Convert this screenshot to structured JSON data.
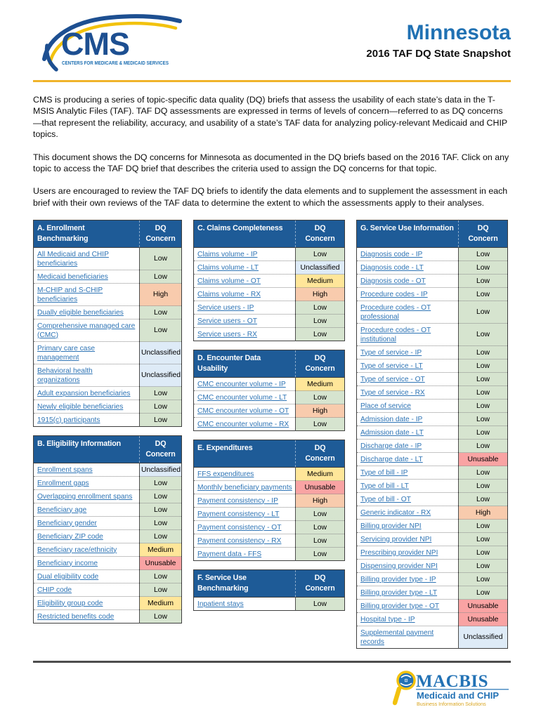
{
  "header": {
    "logo_acronym": "CMS",
    "logo_tagline": "CENTERS FOR MEDICARE & MEDICAID SERVICES",
    "title": "Minnesota",
    "subtitle": "2016 TAF DQ State Snapshot"
  },
  "intro": {
    "p1": "CMS is producing a series of topic-specific data quality (DQ) briefs that assess the usability of each state’s data in the T-MSIS Analytic Files (TAF). TAF DQ assessments are expressed in terms of levels of concern—referred to as DQ concerns—that represent the reliability, accuracy, and usability of a state’s TAF data for analyzing policy-relevant Medicaid and CHIP topics.",
    "p2": "This document shows the DQ concerns for Minnesota as documented in the DQ briefs based on the 2016 TAF. Click on any topic to access the TAF DQ brief that describes the criteria used to assign the DQ concerns for that topic.",
    "p3": "Users are encouraged to review the TAF DQ briefs to identify the data elements and to supplement the assessment in each brief with their own reviews of the TAF data to determine the extent to which the assessments apply to their analyses."
  },
  "labels": {
    "concern_header": "DQ\nConcern"
  },
  "legend": {
    "Low": "#D6E4CF",
    "Medium": "#FFE699",
    "High": "#F8CBAD",
    "Unusable": "#F9A3A3",
    "Unclassified": "#DEEBF7",
    "header_blue": "#1E5B97",
    "link_blue": "#2E74B5",
    "accent_gold": "#F0B32A"
  },
  "tables": {
    "A": {
      "title": "A. Enrollment Benchmarking",
      "rows": [
        {
          "topic": "All Medicaid and CHIP beneficiaries",
          "concern": "Low"
        },
        {
          "topic": "Medicaid beneficiaries",
          "concern": "Low"
        },
        {
          "topic": "M-CHIP and S-CHIP beneficiaries",
          "concern": "High"
        },
        {
          "topic": "Dually eligible beneficiaries",
          "concern": "Low"
        },
        {
          "topic": "Comprehensive managed care (CMC)",
          "concern": "Low"
        },
        {
          "topic": "Primary care case management",
          "concern": "Unclassified"
        },
        {
          "topic": "Behavioral health organizations",
          "concern": "Unclassified"
        },
        {
          "topic": "Adult expansion beneficiaries",
          "concern": "Low"
        },
        {
          "topic": "Newly eligible beneficiaries",
          "concern": "Low"
        },
        {
          "topic": "1915(c) participants",
          "concern": "Low"
        }
      ]
    },
    "B": {
      "title": "B. Eligibility Information",
      "rows": [
        {
          "topic": "Enrollment spans",
          "concern": "Unclassified"
        },
        {
          "topic": "Enrollment gaps",
          "concern": "Low"
        },
        {
          "topic": "Overlapping enrollment spans",
          "concern": "Low"
        },
        {
          "topic": "Beneficiary age",
          "concern": "Low"
        },
        {
          "topic": "Beneficiary gender",
          "concern": "Low"
        },
        {
          "topic": "Beneficiary ZIP code",
          "concern": "Low"
        },
        {
          "topic": "Beneficiary race/ethnicity",
          "concern": "Medium"
        },
        {
          "topic": "Beneficiary income",
          "concern": "Unusable"
        },
        {
          "topic": "Dual eligibility code",
          "concern": "Low"
        },
        {
          "topic": "CHIP code",
          "concern": "Low"
        },
        {
          "topic": "Eligibility group code",
          "concern": "Medium"
        },
        {
          "topic": "Restricted benefits code",
          "concern": "Low"
        }
      ]
    },
    "C": {
      "title": "C. Claims Completeness",
      "rows": [
        {
          "topic": "Claims volume - IP",
          "concern": "Low"
        },
        {
          "topic": "Claims volume - LT",
          "concern": "Unclassified"
        },
        {
          "topic": "Claims volume - OT",
          "concern": "Medium"
        },
        {
          "topic": "Claims volume - RX",
          "concern": "High"
        },
        {
          "topic": "Service users - IP",
          "concern": "Low"
        },
        {
          "topic": "Service users - OT",
          "concern": "Low"
        },
        {
          "topic": "Service users - RX",
          "concern": "Low"
        }
      ]
    },
    "D": {
      "title": "D. Encounter Data Usability",
      "rows": [
        {
          "topic": "CMC encounter volume - IP",
          "concern": "Medium"
        },
        {
          "topic": "CMC encounter volume - LT",
          "concern": "Low"
        },
        {
          "topic": "CMC encounter volume - OT",
          "concern": "High"
        },
        {
          "topic": "CMC encounter volume - RX",
          "concern": "Low"
        }
      ]
    },
    "E": {
      "title": "E. Expenditures",
      "rows": [
        {
          "topic": "FFS expenditures",
          "concern": "Medium"
        },
        {
          "topic": "Monthly beneficiary payments",
          "concern": "Unusable"
        },
        {
          "topic": "Payment consistency - IP",
          "concern": "High"
        },
        {
          "topic": "Payment consistency - LT",
          "concern": "Low"
        },
        {
          "topic": "Payment consistency - OT",
          "concern": "Low"
        },
        {
          "topic": "Payment consistency - RX",
          "concern": "Low"
        },
        {
          "topic": "Payment data - FFS",
          "concern": "Low"
        }
      ]
    },
    "F": {
      "title": "F. Service Use Benchmarking",
      "rows": [
        {
          "topic": "Inpatient stays",
          "concern": "Low"
        }
      ]
    },
    "G": {
      "title": "G. Service Use Information",
      "rows": [
        {
          "topic": "Diagnosis code - IP",
          "concern": "Low"
        },
        {
          "topic": "Diagnosis code - LT",
          "concern": "Low"
        },
        {
          "topic": "Diagnosis code - OT",
          "concern": "Low"
        },
        {
          "topic": "Procedure codes - IP",
          "concern": "Low"
        },
        {
          "topic": "Procedure codes - OT professional",
          "concern": "Low"
        },
        {
          "topic": "Procedure codes - OT institutional",
          "concern": "Low"
        },
        {
          "topic": "Type of service - IP",
          "concern": "Low"
        },
        {
          "topic": "Type of service - LT",
          "concern": "Low"
        },
        {
          "topic": "Type of service - OT",
          "concern": "Low"
        },
        {
          "topic": "Type of service - RX",
          "concern": "Low"
        },
        {
          "topic": "Place of service",
          "concern": "Low"
        },
        {
          "topic": "Admission date - IP",
          "concern": "Low"
        },
        {
          "topic": "Admission date - LT",
          "concern": "Low"
        },
        {
          "topic": "Discharge date - IP",
          "concern": "Low"
        },
        {
          "topic": "Discharge date - LT",
          "concern": "Unusable"
        },
        {
          "topic": "Type of bill - IP",
          "concern": "Low"
        },
        {
          "topic": "Type of bill - LT",
          "concern": "Low"
        },
        {
          "topic": "Type of bill - OT",
          "concern": "Low"
        },
        {
          "topic": "Generic indicator - RX",
          "concern": "High"
        },
        {
          "topic": "Billing provider NPI",
          "concern": "Low"
        },
        {
          "topic": "Servicing provider NPI",
          "concern": "Low"
        },
        {
          "topic": "Prescribing provider NPI",
          "concern": "Low"
        },
        {
          "topic": "Dispensing provider NPI",
          "concern": "Low"
        },
        {
          "topic": "Billing provider type - IP",
          "concern": "Low"
        },
        {
          "topic": "Billing provider type - LT",
          "concern": "Low"
        },
        {
          "topic": "Billing provider type - OT",
          "concern": "Unusable"
        },
        {
          "topic": "Hospital type - IP",
          "concern": "Unusable"
        },
        {
          "topic": "Supplemental payment records",
          "concern": "Unclassified"
        }
      ]
    }
  },
  "footer": {
    "logo_name": "MACBIS",
    "logo_line1": "Medicaid and CHIP",
    "logo_line2": "Business Information Solutions"
  }
}
